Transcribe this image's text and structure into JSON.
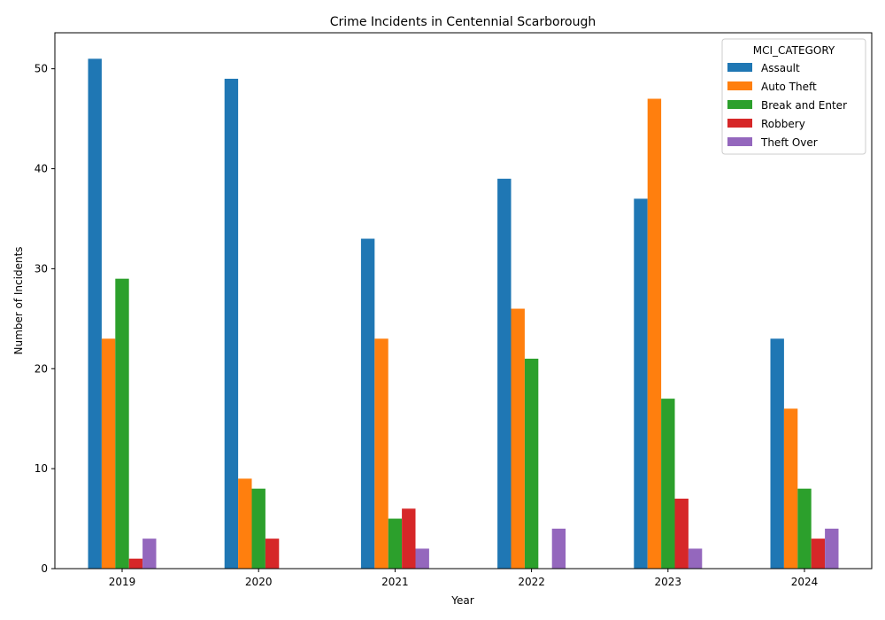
{
  "chart_data": {
    "type": "bar",
    "title": "Crime Incidents in Centennial Scarborough",
    "xlabel": "Year",
    "ylabel": "Number of Incidents",
    "categories": [
      "2019",
      "2020",
      "2021",
      "2022",
      "2023",
      "2024"
    ],
    "ylim": [
      0,
      53.6
    ],
    "yticks": [
      0,
      10,
      20,
      30,
      40,
      50
    ],
    "grid": false,
    "legend": {
      "title": "MCI_CATEGORY",
      "placement": "top-right"
    },
    "series": [
      {
        "name": "Assault",
        "color": "#1f77b4",
        "values": [
          51,
          49,
          33,
          39,
          37,
          23
        ]
      },
      {
        "name": "Auto Theft",
        "color": "#ff7f0e",
        "values": [
          23,
          9,
          23,
          26,
          47,
          16
        ]
      },
      {
        "name": "Break and Enter",
        "color": "#2ca02c",
        "values": [
          29,
          8,
          5,
          21,
          17,
          8
        ]
      },
      {
        "name": "Robbery",
        "color": "#d62728",
        "values": [
          1,
          3,
          6,
          0,
          7,
          3
        ]
      },
      {
        "name": "Theft Over",
        "color": "#9467bd",
        "values": [
          3,
          0,
          2,
          4,
          2,
          4
        ]
      }
    ]
  }
}
